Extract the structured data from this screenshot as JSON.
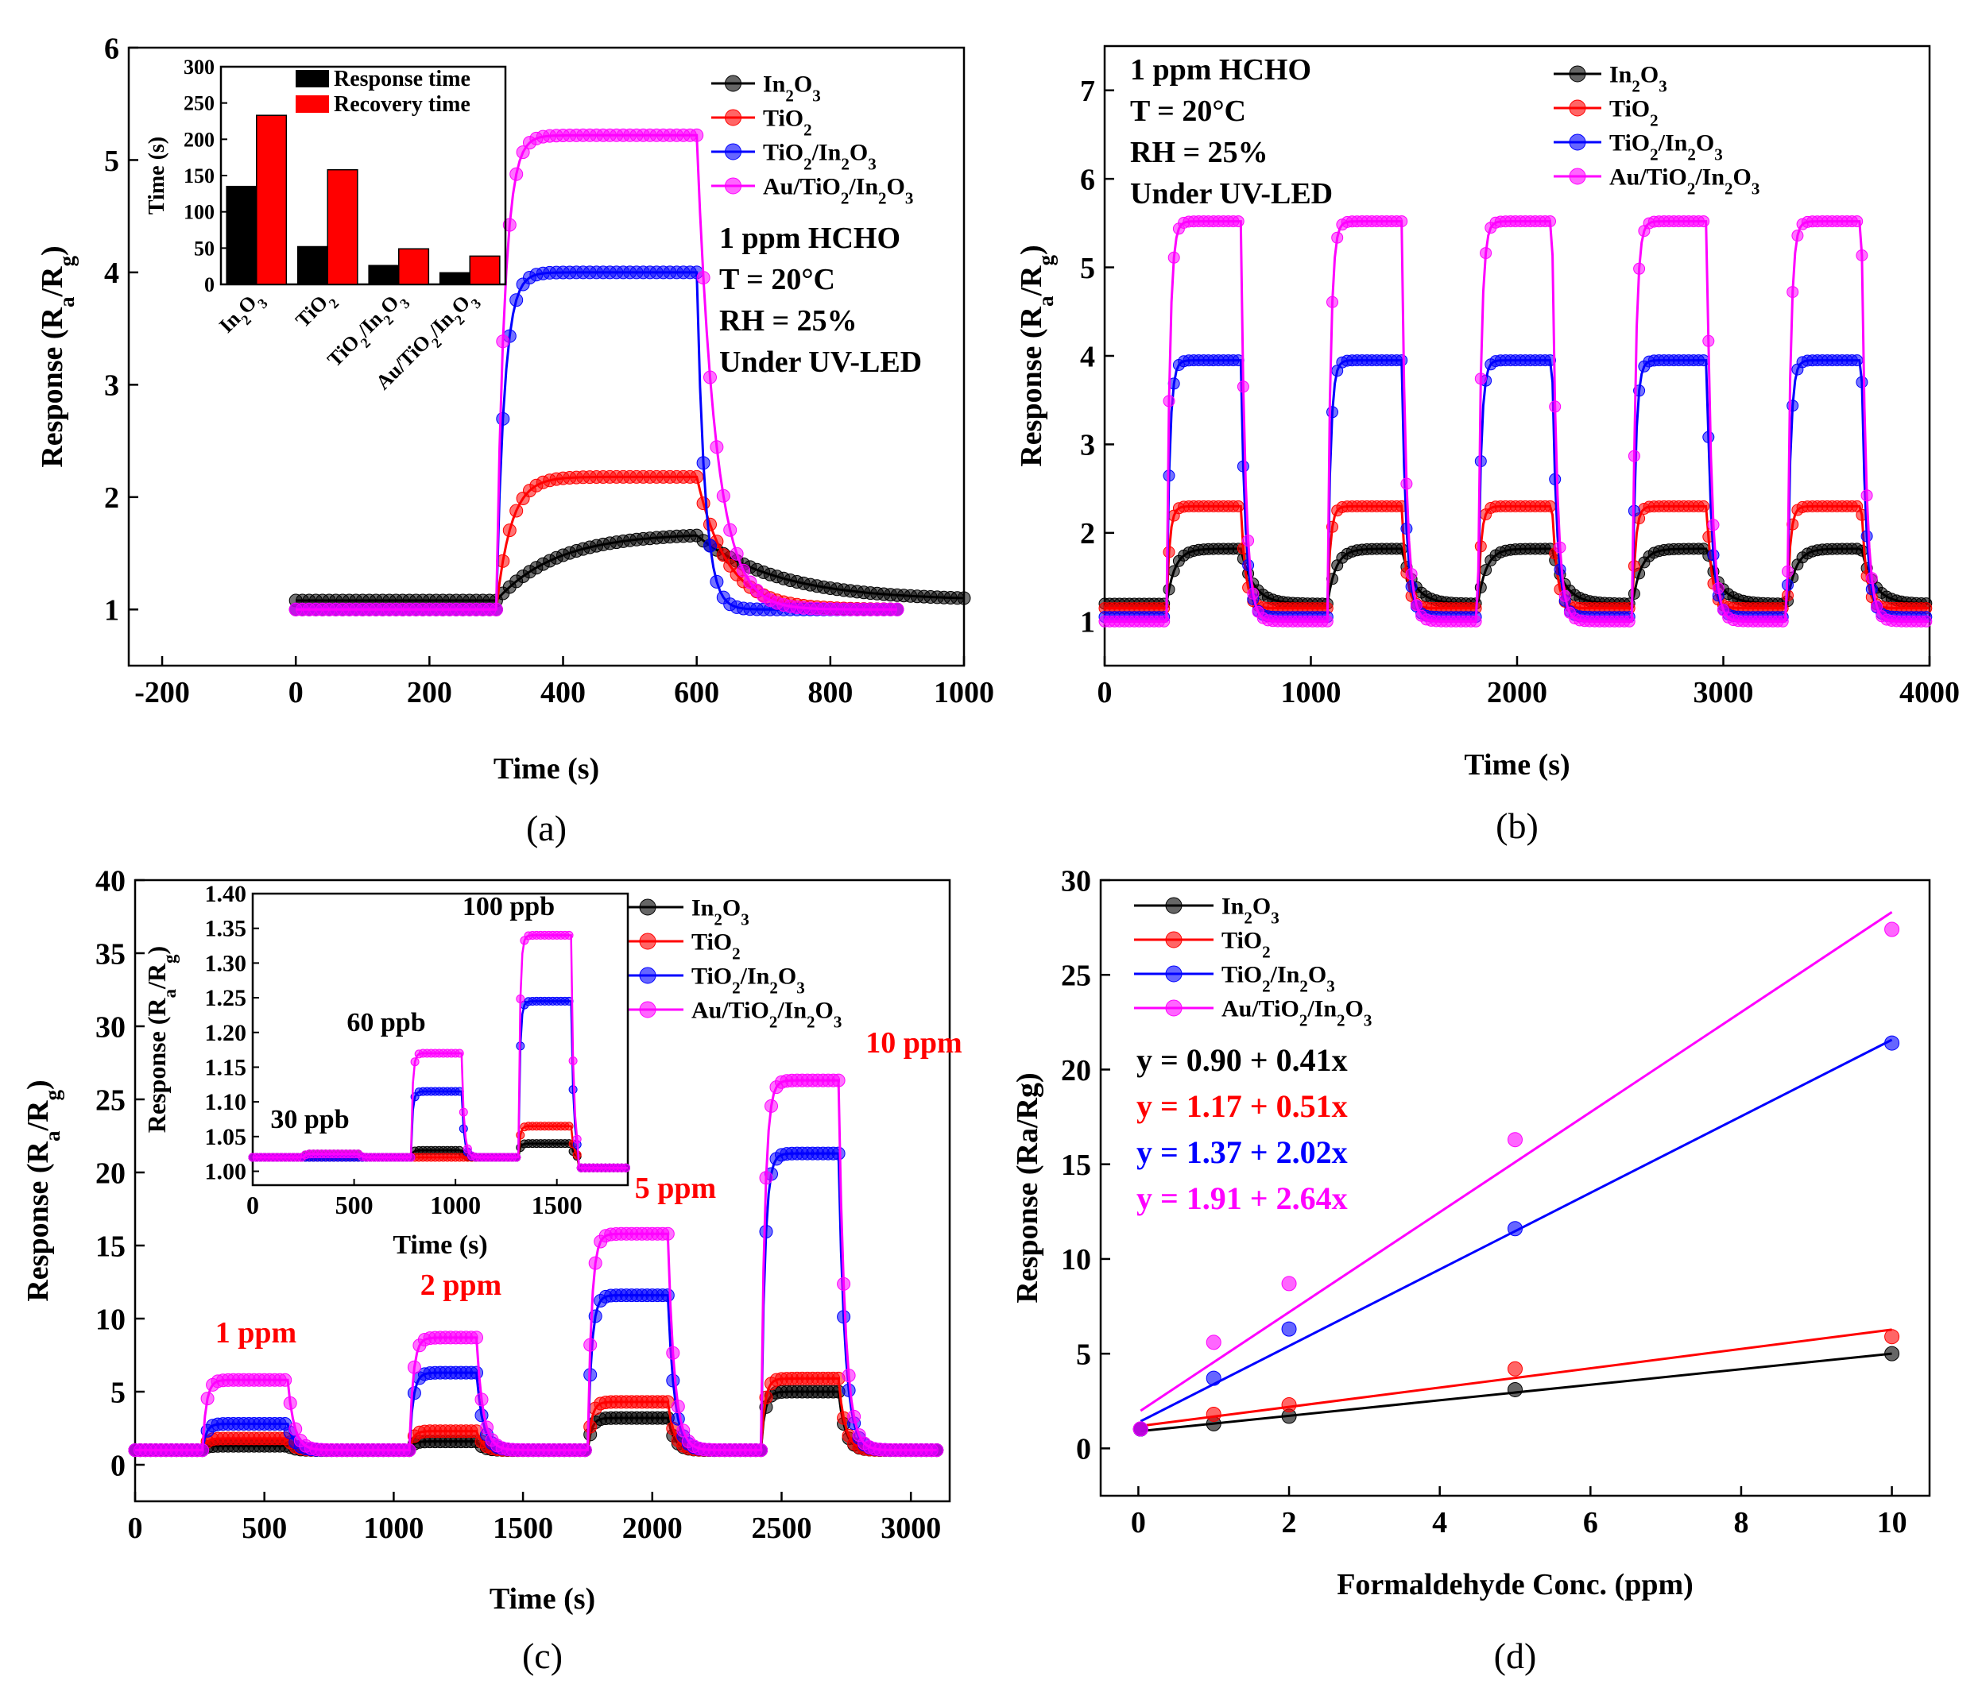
{
  "figure": {
    "colors": {
      "In2O3": "#000000",
      "TiO2": "#ff0000",
      "TiO2_In2O3": "#0000ff",
      "Au_TiO2_In2O3": "#ff00ff"
    }
  },
  "chart_data": [
    {
      "id": "a",
      "type": "line",
      "caption": "(a)",
      "xlabel": "Time (s)",
      "ylabel": "Response (Ra/Rg)",
      "xlim": [
        -250,
        1000
      ],
      "ylim": [
        0.5,
        6
      ],
      "xticks": [
        -200,
        0,
        200,
        400,
        600,
        800,
        1000
      ],
      "yticks": [
        1,
        2,
        3,
        4,
        5,
        6
      ],
      "legend": [
        "In2O3",
        "TiO2",
        "TiO2/In2O3",
        "Au/TiO2/In2O3"
      ],
      "annotations": [
        "1 ppm HCHO",
        "T = 20°C",
        "RH = 25%",
        "Under UV-LED"
      ],
      "series": [
        {
          "name": "In2O3",
          "baseline": 1.08,
          "peak": 1.68,
          "on": 300,
          "off": 600,
          "end": 1000,
          "rise_tau": 90,
          "decay_tau": 120
        },
        {
          "name": "TiO2",
          "baseline": 1.0,
          "peak": 2.18,
          "on": 300,
          "off": 600,
          "end": 900,
          "rise_tau": 22,
          "decay_tau": 45
        },
        {
          "name": "TiO2/In2O3",
          "baseline": 1.0,
          "peak": 4.0,
          "on": 300,
          "off": 600,
          "end": 900,
          "rise_tau": 12,
          "decay_tau": 12
        },
        {
          "name": "Au/TiO2/In2O3",
          "baseline": 1.0,
          "peak": 5.22,
          "on": 300,
          "off": 600,
          "end": 900,
          "rise_tau": 12,
          "decay_tau": 28
        }
      ],
      "inset": {
        "type": "bar",
        "ylabel": "Time (s)",
        "ylim": [
          0,
          300
        ],
        "yticks": [
          0,
          50,
          100,
          150,
          200,
          250,
          300
        ],
        "categories": [
          "In2O3",
          "TiO2",
          "TiO2/In2O3",
          "Au/TiO2/In2O3"
        ],
        "series": [
          {
            "name": "Response time",
            "values": [
              135,
              52,
              26,
              16
            ]
          },
          {
            "name": "Recovery time",
            "values": [
              233,
              158,
              49,
              39
            ]
          }
        ]
      }
    },
    {
      "id": "b",
      "type": "line",
      "caption": "(b)",
      "xlabel": "Time (s)",
      "ylabel": "Response (Ra/Rg)",
      "xlim": [
        0,
        4000
      ],
      "ylim": [
        0.5,
        7.5
      ],
      "xticks": [
        0,
        1000,
        2000,
        3000,
        4000
      ],
      "yticks": [
        1,
        2,
        3,
        4,
        5,
        6,
        7
      ],
      "legend": [
        "In2O3",
        "TiO2",
        "TiO2/In2O3",
        "Au/TiO2/In2O3"
      ],
      "annotations": [
        "1 ppm HCHO",
        "T = 20°C",
        "RH = 25%",
        "Under UV-LED"
      ],
      "cycles_on": [
        300,
        1080,
        1810,
        2560,
        3310
      ],
      "cycle_duration": 360,
      "series": [
        {
          "name": "In2O3",
          "baseline": 1.2,
          "peak": 1.82
        },
        {
          "name": "TiO2",
          "baseline": 1.15,
          "peak": 2.3
        },
        {
          "name": "TiO2/In2O3",
          "baseline": 1.05,
          "peak": 3.95
        },
        {
          "name": "Au/TiO2/In2O3",
          "baseline": 1.0,
          "peak": 5.52
        }
      ]
    },
    {
      "id": "c",
      "type": "line",
      "caption": "(c)",
      "xlabel": "Time (s)",
      "ylabel": "Response (Ra/Rg)",
      "xlim": [
        0,
        3150
      ],
      "ylim": [
        -2.5,
        40
      ],
      "xticks": [
        0,
        500,
        1000,
        1500,
        2000,
        2500,
        3000
      ],
      "yticks": [
        0,
        5,
        10,
        15,
        20,
        25,
        30,
        35,
        40
      ],
      "legend": [
        "In2O3",
        "TiO2",
        "TiO2/In2O3",
        "Au/TiO2/In2O3"
      ],
      "step_labels": [
        "1 ppm",
        "2 ppm",
        "5 ppm",
        "10 ppm"
      ],
      "steps": [
        {
          "on": 260,
          "off": 590,
          "values": {
            "In2O3": 1.3,
            "TiO2": 1.8,
            "TiO2/In2O3": 2.8,
            "Au/TiO2/In2O3": 5.8
          }
        },
        {
          "on": 1060,
          "off": 1320,
          "values": {
            "In2O3": 1.6,
            "TiO2": 2.3,
            "TiO2/In2O3": 6.3,
            "Au/TiO2/In2O3": 8.7
          }
        },
        {
          "on": 1750,
          "off": 2060,
          "values": {
            "In2O3": 3.2,
            "TiO2": 4.3,
            "TiO2/In2O3": 11.6,
            "Au/TiO2/In2O3": 15.8
          }
        },
        {
          "on": 2420,
          "off": 2720,
          "values": {
            "In2O3": 5.0,
            "TiO2": 5.9,
            "TiO2/In2O3": 21.3,
            "Au/TiO2/In2O3": 26.3
          }
        }
      ],
      "inset": {
        "type": "line",
        "xlabel": "Time (s)",
        "ylabel": "Response (Ra/Rg)",
        "xlim": [
          0,
          1850
        ],
        "ylim": [
          0.98,
          1.4
        ],
        "xticks": [
          0,
          500,
          1000,
          1500
        ],
        "yticks": [
          1.0,
          1.05,
          1.1,
          1.15,
          1.2,
          1.25,
          1.3,
          1.35,
          1.4
        ],
        "step_labels": [
          "30 ppb",
          "60 ppb",
          "100 ppb"
        ],
        "steps": [
          {
            "on": 250,
            "off": 520,
            "values": {
              "In2O3": 1.025,
              "TiO2": 1.02,
              "TiO2/In2O3": 1.02,
              "Au/TiO2/In2O3": 1.025
            }
          },
          {
            "on": 780,
            "off": 1030,
            "values": {
              "In2O3": 1.03,
              "TiO2": 1.02,
              "TiO2/In2O3": 1.115,
              "Au/TiO2/In2O3": 1.17
            }
          },
          {
            "on": 1310,
            "off": 1570,
            "values": {
              "In2O3": 1.04,
              "TiO2": 1.065,
              "TiO2/In2O3": 1.245,
              "Au/TiO2/In2O3": 1.34
            }
          }
        ]
      }
    },
    {
      "id": "d",
      "type": "scatter",
      "caption": "(d)",
      "xlabel": "Formaldehyde Conc. (ppm)",
      "ylabel": "Response (Ra/Rg)",
      "xlim": [
        -0.5,
        10.5
      ],
      "ylim": [
        -2.5,
        30
      ],
      "xticks": [
        0,
        2,
        4,
        6,
        8,
        10
      ],
      "yticks": [
        0,
        5,
        10,
        15,
        20,
        25,
        30
      ],
      "legend": [
        "In2O3",
        "TiO2",
        "TiO2/In2O3",
        "Au/TiO2/In2O3"
      ],
      "x": [
        0.03,
        1,
        2,
        5,
        10
      ],
      "series": [
        {
          "name": "In2O3",
          "values": [
            1.02,
            1.3,
            1.7,
            3.1,
            5.0
          ],
          "fit": {
            "intercept": 0.9,
            "slope": 0.41
          },
          "equation": "y = 0.90 + 0.41x"
        },
        {
          "name": "TiO2",
          "values": [
            1.02,
            1.8,
            2.3,
            4.2,
            5.9
          ],
          "fit": {
            "intercept": 1.17,
            "slope": 0.51
          },
          "equation": "y = 1.17 + 0.51x"
        },
        {
          "name": "TiO2/In2O3",
          "values": [
            1.02,
            3.7,
            6.3,
            11.6,
            21.4
          ],
          "fit": {
            "intercept": 1.37,
            "slope": 2.02
          },
          "equation": "y = 1.37 + 2.02x"
        },
        {
          "name": "Au/TiO2/In2O3",
          "values": [
            1.03,
            5.6,
            8.7,
            16.3,
            27.4
          ],
          "fit": {
            "intercept": 1.91,
            "slope": 2.64
          },
          "equation": "y = 1.91 + 2.64x"
        }
      ]
    }
  ]
}
